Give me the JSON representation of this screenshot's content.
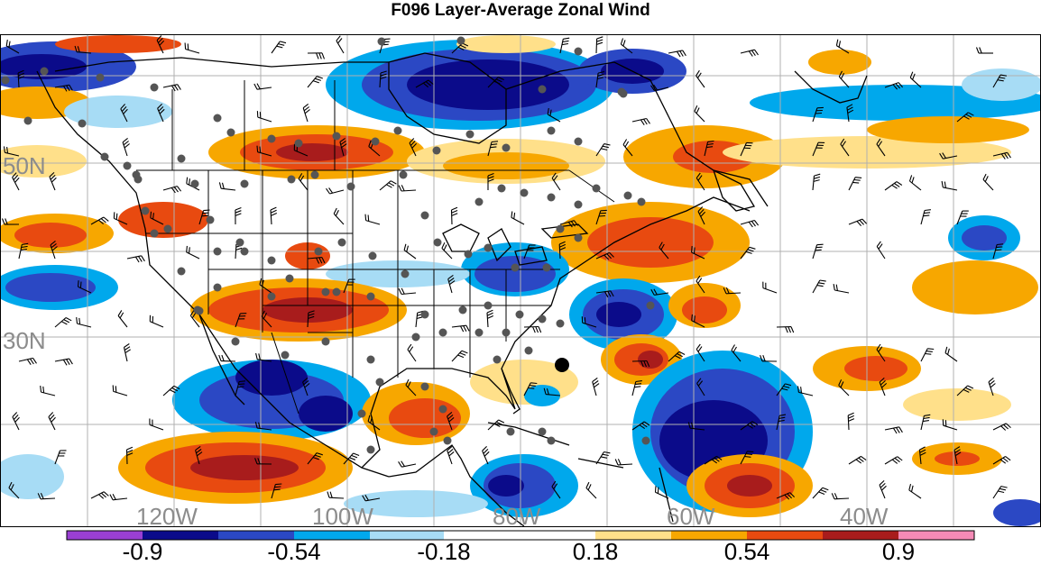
{
  "title": "F096 Layer-Average Zonal Wind",
  "map": {
    "lat_labels": [
      "50N",
      "30N"
    ],
    "lon_labels": [
      "120W",
      "100W",
      "80W",
      "60W",
      "40W"
    ],
    "label_color": "#8c8c8c",
    "grid_color": "#b0b0b0"
  },
  "colorbar": {
    "colors": [
      "#9a3fd3",
      "#0b0b8a",
      "#2b48c4",
      "#00a8ec",
      "#a7dcf5",
      "#ffffff",
      "#ffe08a",
      "#f7a700",
      "#e84a10",
      "#a81c1c",
      "#f58ab6"
    ],
    "labels": [
      "-0.9",
      "-0.54",
      "-0.18",
      "0.18",
      "0.54",
      "0.9"
    ]
  },
  "legend_colors": {
    "strong_negative": "#0b0b8a",
    "negative": "#2b48c4",
    "weak_negative": "#00a8ec",
    "slight_negative": "#a7dcf5",
    "neutral": "#ffffff",
    "slight_positive": "#ffe08a",
    "positive": "#f7a700",
    "strong_positive": "#e84a10",
    "very_strong_positive": "#a81c1c"
  }
}
